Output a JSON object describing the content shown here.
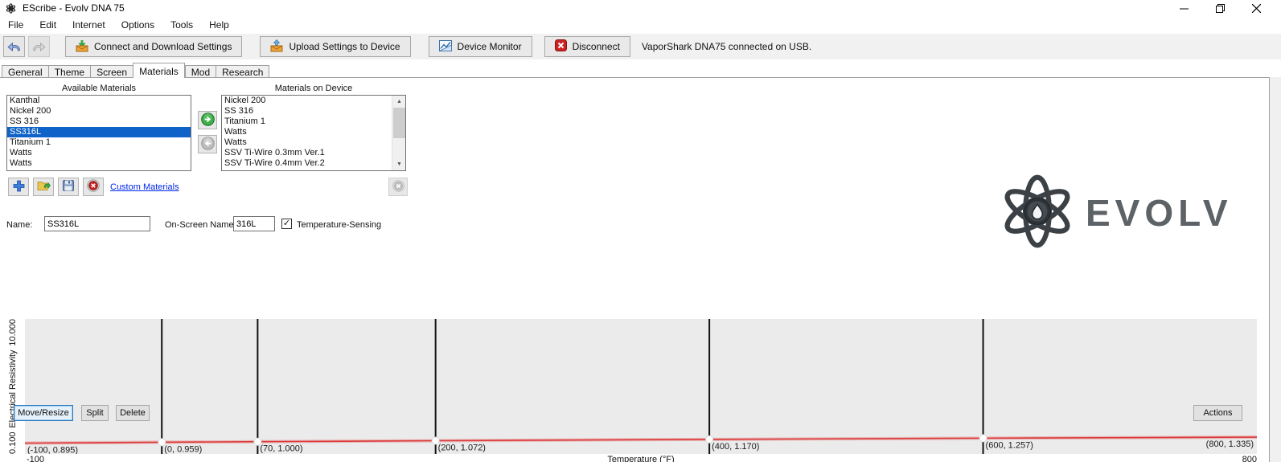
{
  "window": {
    "title": "EScribe - Evolv DNA 75"
  },
  "menu": {
    "items": [
      "File",
      "Edit",
      "Internet",
      "Options",
      "Tools",
      "Help"
    ]
  },
  "toolbar": {
    "connect_label": "Connect and Download Settings",
    "upload_label": "Upload Settings to Device",
    "monitor_label": "Device Monitor",
    "disconnect_label": "Disconnect",
    "status": "VaporShark DNA75 connected on USB."
  },
  "tabs": {
    "items": [
      "General",
      "Theme",
      "Screen",
      "Materials",
      "Mod",
      "Research"
    ],
    "active": "Materials"
  },
  "materials": {
    "available_label": "Available Materials",
    "available": [
      "Kanthal",
      "Nickel 200",
      "SS 316",
      "SS316L",
      "Titanium 1",
      "Watts",
      "Watts"
    ],
    "selected_item": "SS316L",
    "device_label": "Materials on Device",
    "device": [
      "Nickel 200",
      "SS 316",
      "Titanium 1",
      "Watts",
      "Watts",
      "SSV Ti-Wire 0.3mm Ver.1",
      "SSV Ti-Wire 0.4mm Ver.2"
    ],
    "custom_link": "Custom Materials"
  },
  "editor": {
    "name_label": "Name:",
    "name_value": "SS316L",
    "onscreen_label": "On-Screen Name:",
    "onscreen_value": "316L",
    "temp_checkbox_glyph": "✓",
    "temp_sensing_label": "Temperature-Sensing"
  },
  "chart_data": {
    "type": "line",
    "points": [
      [
        -100,
        0.895
      ],
      [
        0,
        0.959
      ],
      [
        70,
        1.0
      ],
      [
        200,
        1.072
      ],
      [
        400,
        1.17
      ],
      [
        600,
        1.257
      ],
      [
        800,
        1.335
      ]
    ],
    "xlabel": "Temperature (°F)",
    "ylabel": "Electrical Resistivity",
    "ymin_label": "0.100",
    "ymax_label": "10.000",
    "xmin_label": "-100",
    "xmax_label": "800",
    "xlim": [
      -100,
      800
    ],
    "ylim": [
      0.1,
      10
    ],
    "line_color": "#dd3a3a",
    "divider_color": "#111111",
    "plot_bg": "#ebebeb",
    "grid": false,
    "legend": "none"
  },
  "footer": {
    "move_resize_label": "Move/Resize",
    "split_label": "Split",
    "delete_label": "Delete",
    "actions_label": "Actions"
  },
  "logo": {
    "text": "EVOLV"
  },
  "colors": {
    "selection": "#0f63c8",
    "link": "#0026e8",
    "status_red": "#cc2222",
    "go_green": "#3fae49"
  }
}
